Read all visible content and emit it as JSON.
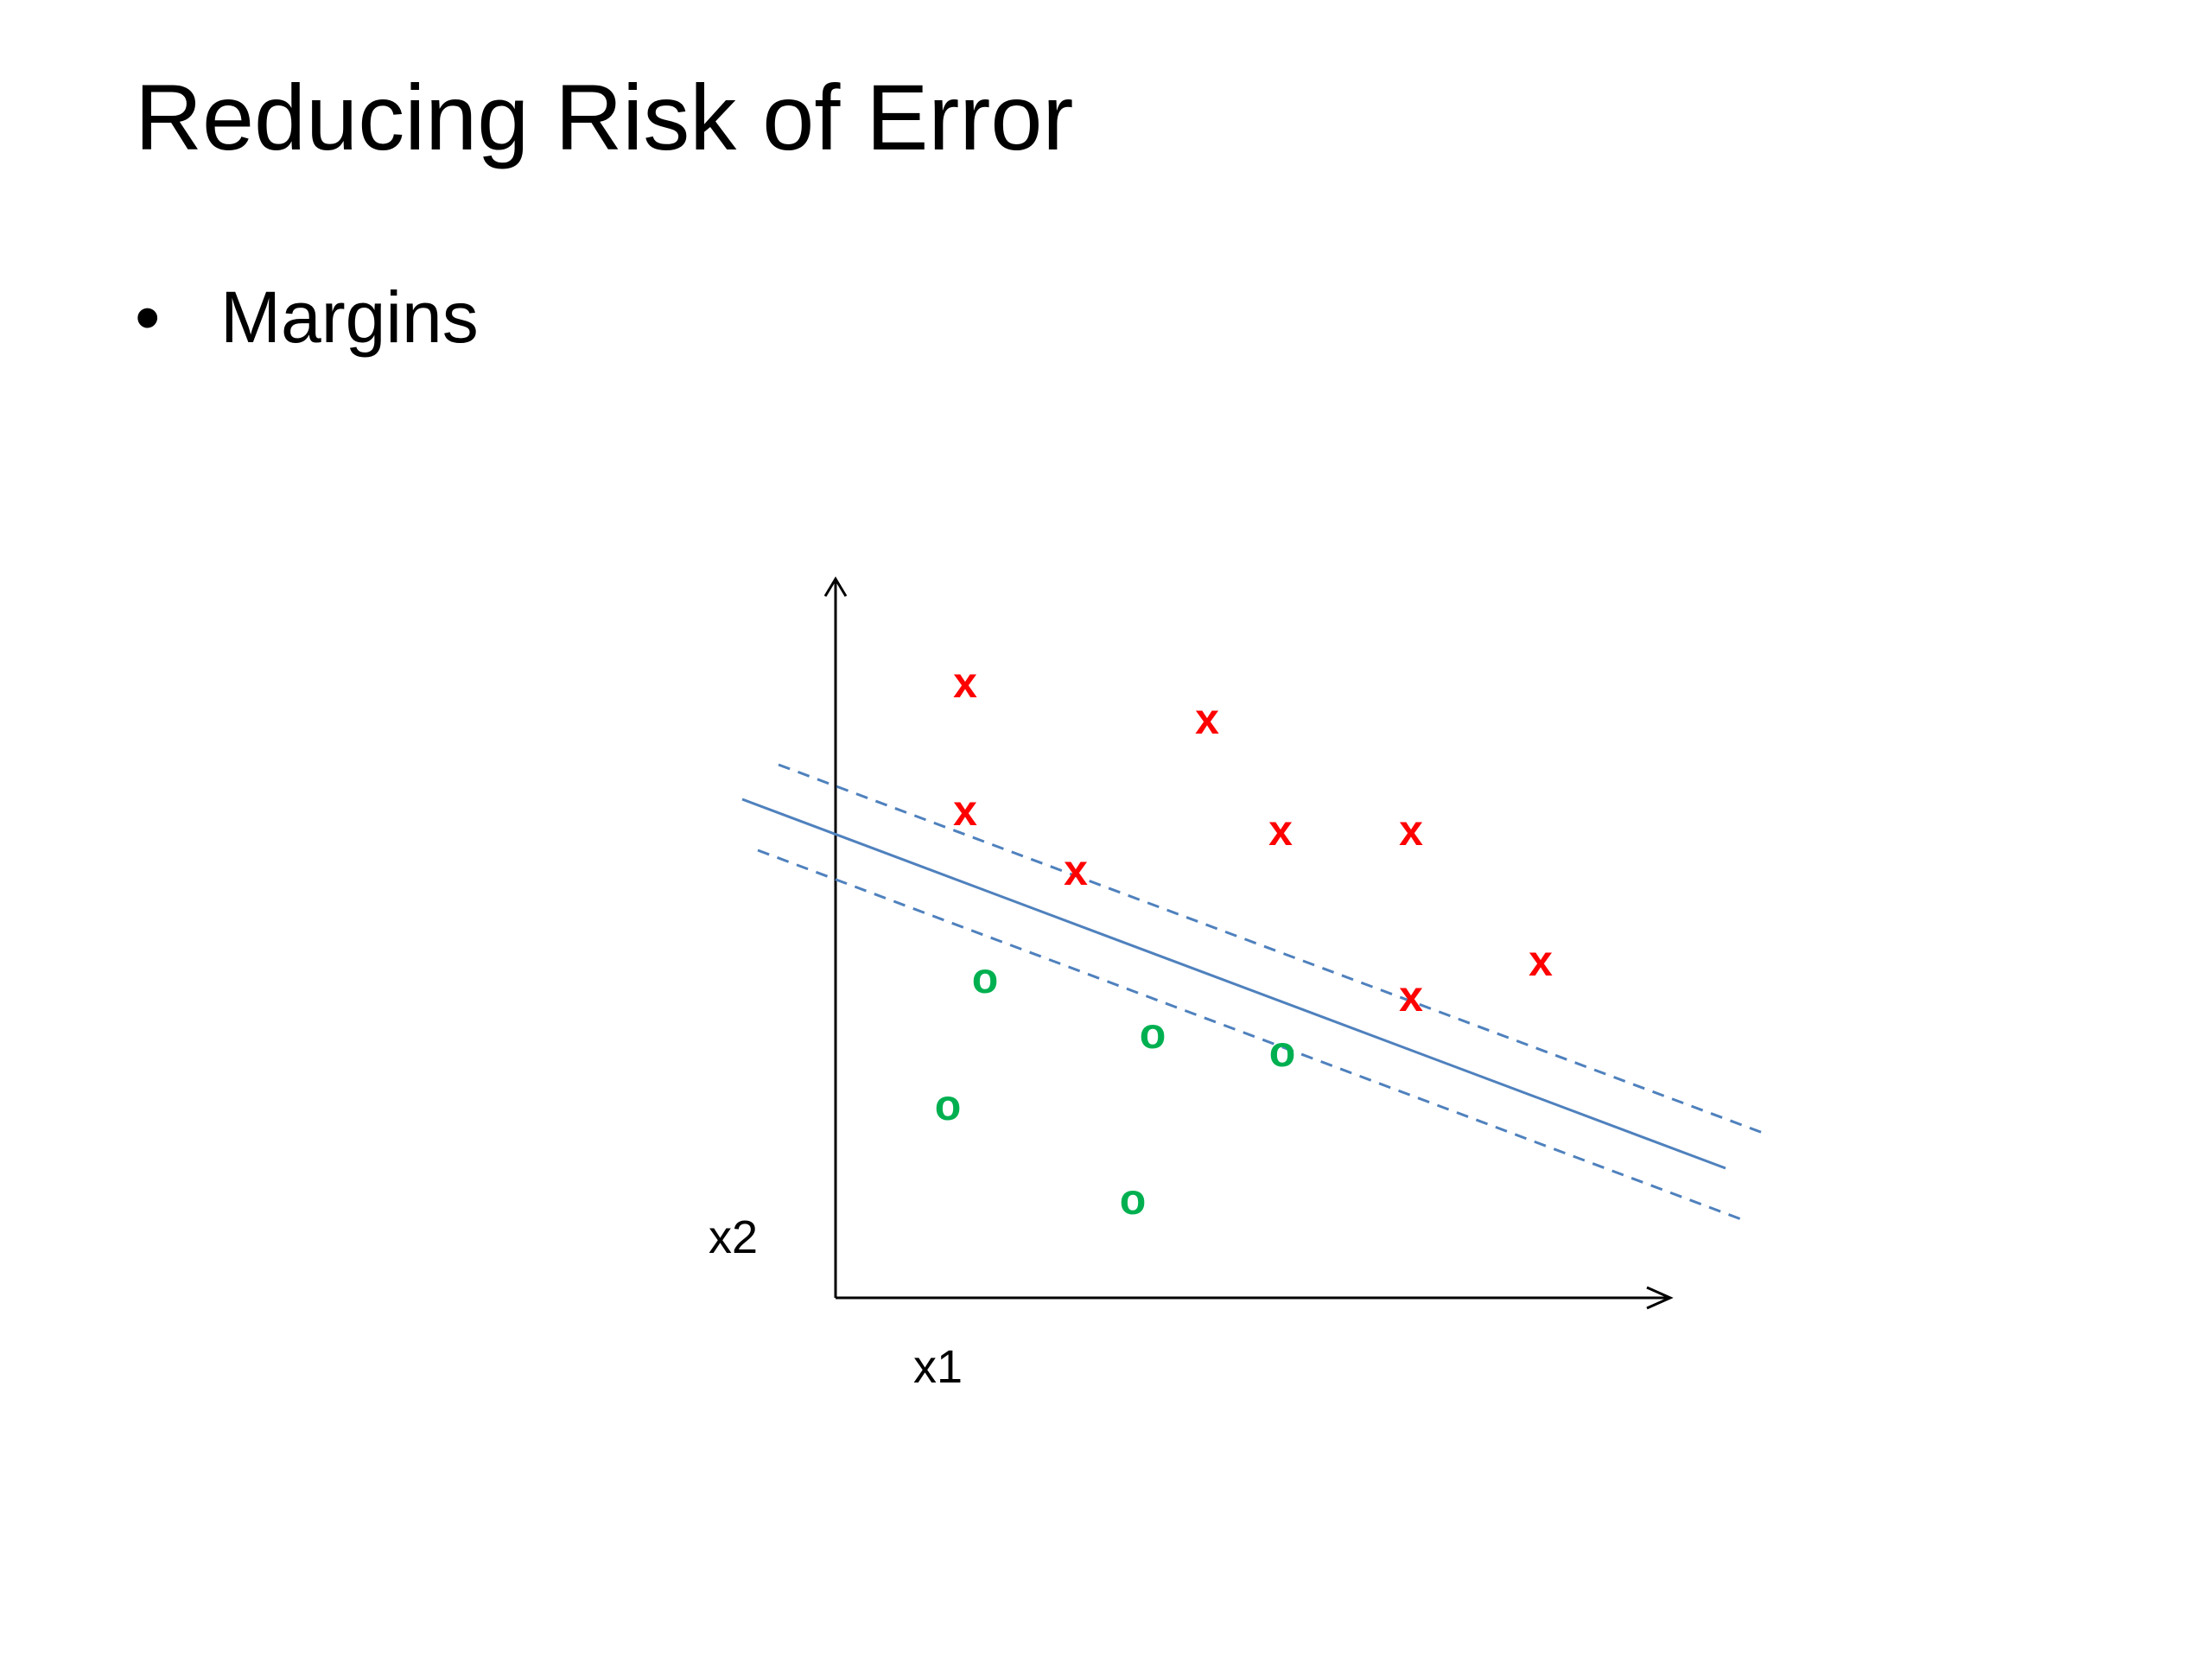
{
  "title": "Reducing Risk of Error",
  "bullets": [
    "Margins"
  ],
  "diagram": {
    "y_axis_label": "x2",
    "x_axis_label": "x1",
    "markers": [
      "x",
      "x",
      "x",
      "x",
      "x",
      "x",
      "x",
      "x",
      "o",
      "o",
      "o",
      "o",
      "o"
    ]
  }
}
